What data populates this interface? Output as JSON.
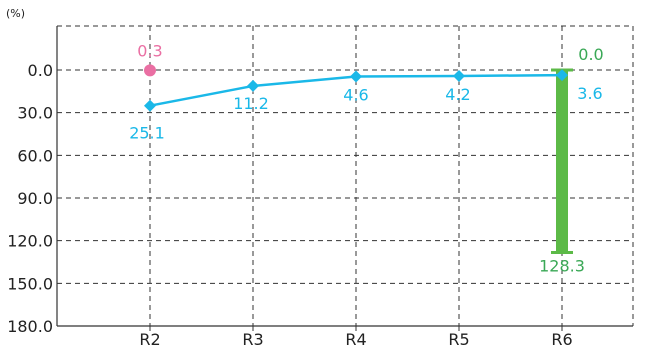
{
  "chart_data": {
    "type": "line",
    "unit_label": "(%)",
    "categories": [
      "R2",
      "R3",
      "R4",
      "R5",
      "R6"
    ],
    "ylim": [
      180,
      -30
    ],
    "y_ticks": [
      0,
      30,
      60,
      90,
      120,
      150,
      180
    ],
    "y_tick_labels": [
      "0.0",
      "30.0",
      "60.0",
      "90.0",
      "120.0",
      "150.0",
      "180.0"
    ],
    "grid": true,
    "series": [
      {
        "values": [
          25.1,
          11.2,
          4.6,
          4.2,
          3.6
        ],
        "labels": [
          "25.1",
          "11.2",
          "4.6",
          "4.2",
          "3.6"
        ],
        "color": "#1ab8e8",
        "marker": "diamond"
      },
      {
        "values": [
          0.3,
          null,
          null,
          null,
          null
        ],
        "labels": [
          "0.3",
          "",
          "",
          "",
          ""
        ],
        "color": "#ea6fa3",
        "marker": "circle"
      }
    ],
    "range_bar": {
      "category": "R6",
      "low": 0.0,
      "high": 128.3,
      "low_label": "0.0",
      "high_label": "128.3",
      "color": "#5cba47",
      "label_color": "#3aa856"
    }
  }
}
